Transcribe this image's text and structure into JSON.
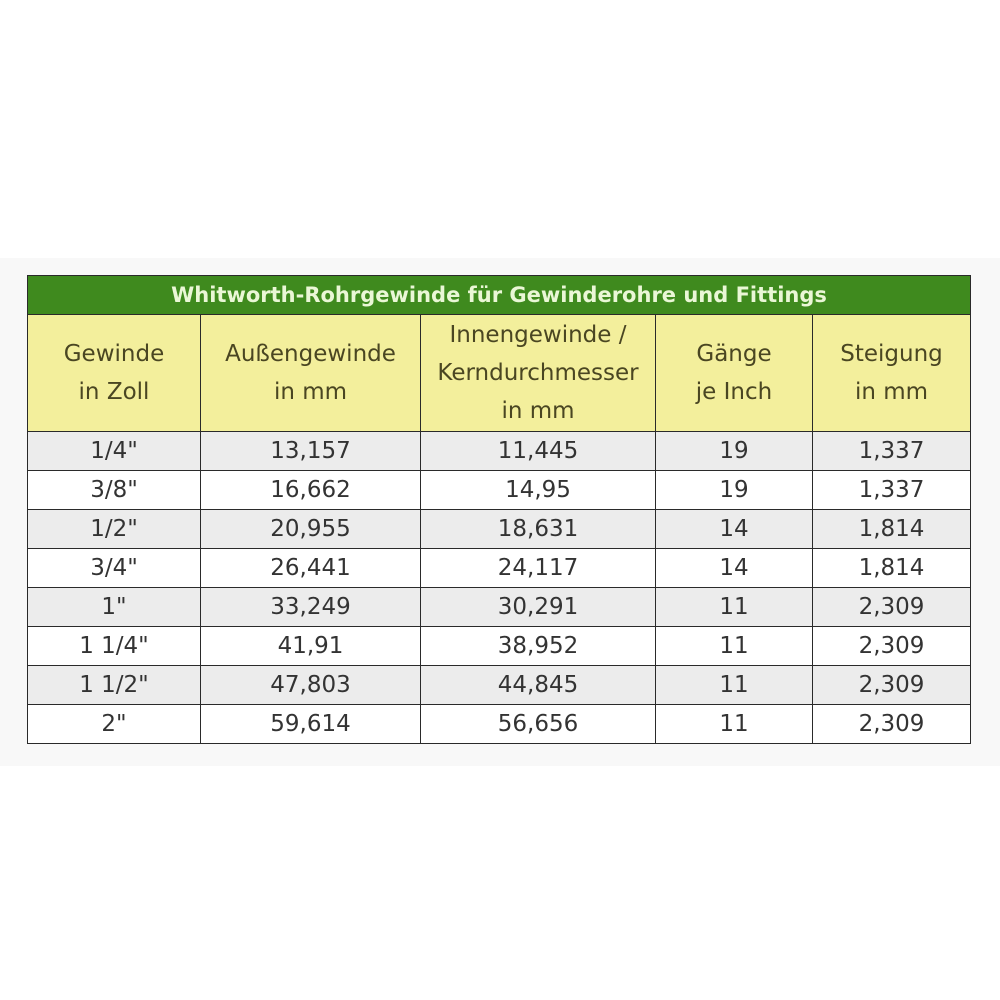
{
  "table": {
    "title": "Whitworth-Rohrgewinde für Gewinderohre und Fittings",
    "headers": [
      "Gewinde\nin Zoll",
      "Außengewinde\nin mm",
      "Innengewinde /\nKerndurchmesser\nin mm",
      "Gänge\nje Inch",
      "Steigung\nin mm"
    ],
    "rows": [
      [
        "1/4\"",
        "13,157",
        "11,445",
        "19",
        "1,337"
      ],
      [
        "3/8\"",
        "16,662",
        "14,95",
        "19",
        "1,337"
      ],
      [
        "1/2\"",
        "20,955",
        "18,631",
        "14",
        "1,814"
      ],
      [
        "3/4\"",
        "26,441",
        "24,117",
        "14",
        "1,814"
      ],
      [
        "1\"",
        "33,249",
        "30,291",
        "11",
        "2,309"
      ],
      [
        "1 1/4\"",
        "41,91",
        "38,952",
        "11",
        "2,309"
      ],
      [
        "1 1/2\"",
        "47,803",
        "44,845",
        "11",
        "2,309"
      ],
      [
        "2\"",
        "59,614",
        "56,656",
        "11",
        "2,309"
      ]
    ],
    "colors": {
      "title_bg": "#3f8a1e",
      "header_bg": "#f3ef9c",
      "stripe_bg": "#ececec"
    }
  }
}
